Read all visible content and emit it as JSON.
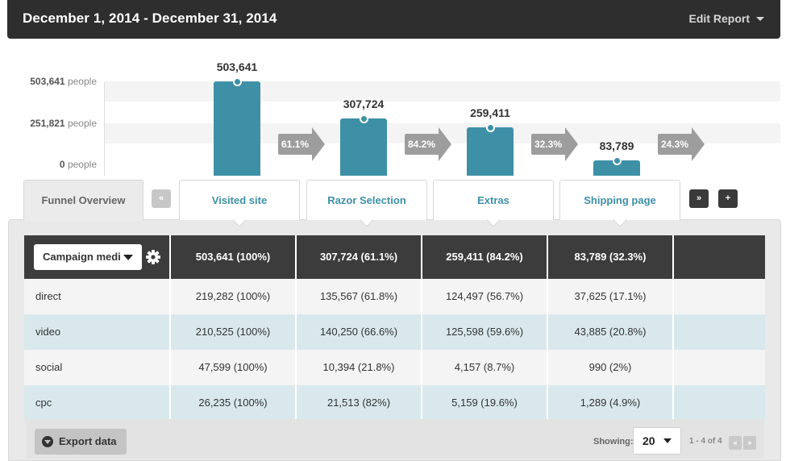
{
  "header": {
    "title": "December 1, 2014 - December 31, 2014",
    "edit_report": "Edit Report"
  },
  "chart_data": {
    "type": "bar",
    "categories": [
      "Visited site",
      "Razor Selection",
      "Extras",
      "Shipping page"
    ],
    "values": [
      503641,
      307724,
      259411,
      83789
    ],
    "value_labels": [
      "503,641",
      "307,724",
      "259,411",
      "83,789"
    ],
    "conversion_labels": [
      "61.1%",
      "84.2%",
      "32.3%",
      "24.3%"
    ],
    "y_ticks": [
      {
        "value": "503,641",
        "unit": "people"
      },
      {
        "value": "251,821",
        "unit": "people"
      },
      {
        "value": "0",
        "unit": "people"
      }
    ],
    "ylim": [
      0,
      503641
    ],
    "bar_color": "#3d90a6"
  },
  "tabs": {
    "overview": "Funnel Overview",
    "prev": "«",
    "next": "»",
    "add": "+",
    "steps": [
      "Visited site",
      "Razor Selection",
      "Extras",
      "Shipping page"
    ]
  },
  "table": {
    "segment_select": "Campaign medi",
    "header_totals": [
      "503,641 (100%)",
      "307,724 (61.1%)",
      "259,411 (84.2%)",
      "83,789 (32.3%)"
    ],
    "rows": [
      {
        "name": "direct",
        "cells": [
          "219,282 (100%)",
          "135,567 (61.8%)",
          "124,497 (56.7%)",
          "37,625 (17.1%)"
        ]
      },
      {
        "name": "video",
        "cells": [
          "210,525 (100%)",
          "140,250 (66.6%)",
          "125,598 (59.6%)",
          "43,885 (20.8%)"
        ]
      },
      {
        "name": "social",
        "cells": [
          "47,599 (100%)",
          "10,394 (21.8%)",
          "4,157 (8.7%)",
          "990 (2%)"
        ]
      },
      {
        "name": "cpc",
        "cells": [
          "26,235 (100%)",
          "21,513 (82%)",
          "5,159 (19.6%)",
          "1,289 (4.9%)"
        ]
      }
    ]
  },
  "footer": {
    "export": "Export data",
    "showing_label": "Showing:",
    "page_size": "20",
    "range": "1 - 4 of 4",
    "prev": "«",
    "next": "»"
  }
}
